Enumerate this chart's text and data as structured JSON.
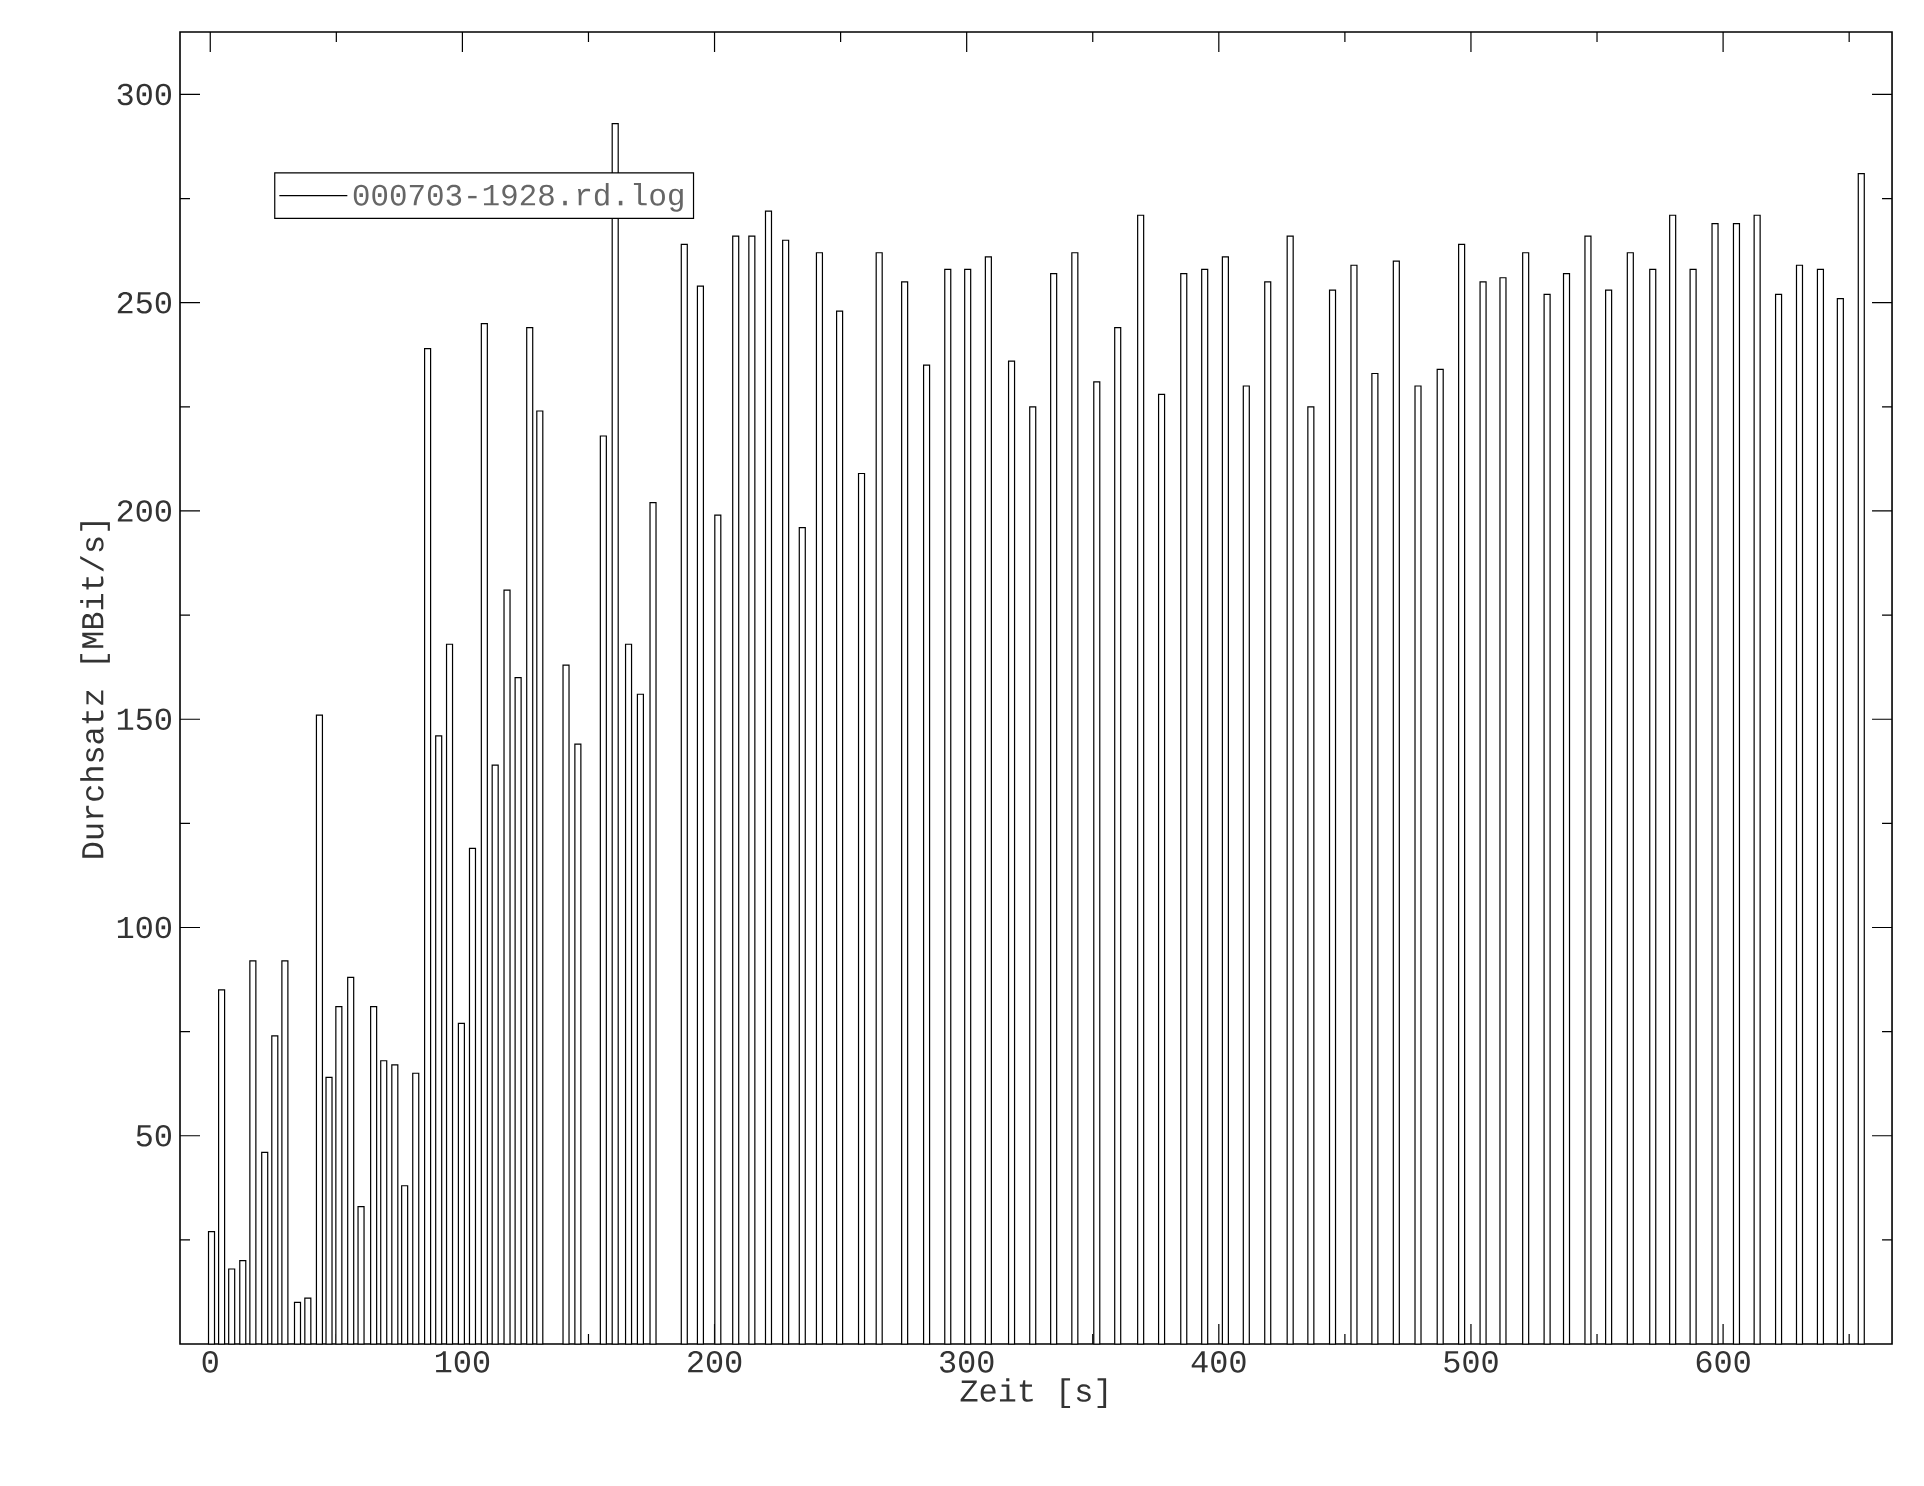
{
  "chart_data": {
    "type": "bar",
    "xlabel": "Zeit [s]",
    "ylabel": "Durchsatz [MBit/s]",
    "x": [
      0.5,
      4.5,
      8.5,
      12.9,
      16.9,
      21.6,
      25.6,
      29.6,
      34.6,
      38.7,
      43.3,
      47.1,
      51,
      55.7,
      59.8,
      64.8,
      68.8,
      73.2,
      77.1,
      81.5,
      86.2,
      90.6,
      94.9,
      99.6,
      104,
      108.7,
      113,
      117.7,
      122.1,
      126.7,
      130.7,
      135.7,
      141.1,
      145.8,
      151.1,
      155.9,
      160.6,
      165.9,
      170.6,
      175.6,
      180.6,
      188,
      194.4,
      201.3,
      208.4,
      214.8,
      221.4,
      228.2,
      234.8,
      241.6,
      249.6,
      258.3,
      265.3,
      275.4,
      284.1,
      292.5,
      300.4,
      308.6,
      317.8,
      326.2,
      334.5,
      342.9,
      351.6,
      359.9,
      369,
      377.3,
      386.1,
      394.4,
      402.6,
      410.9,
      419.4,
      428.3,
      436.5,
      445.1,
      453.6,
      461.9,
      470.4,
      479,
      487.8,
      496.3,
      504.8,
      512.7,
      521.7,
      530.2,
      537.9,
      546.4,
      554.6,
      563.2,
      572.1,
      580,
      588.1,
      596.8,
      605.3,
      613.5,
      622,
      630.3,
      638.6,
      646.5,
      654.8
    ],
    "series": [
      {
        "name": "000703-1928.rd.log",
        "color": "#000000",
        "values": [
          27,
          85,
          18,
          20,
          92,
          46,
          74,
          92,
          10,
          11,
          151,
          64,
          81,
          88,
          33,
          81,
          68,
          67,
          38,
          65,
          239,
          146,
          168,
          77,
          119,
          245,
          139,
          181,
          160,
          244,
          224,
          null,
          163,
          144,
          null,
          218,
          293,
          168,
          156,
          202,
          null,
          264,
          254,
          199,
          266,
          266,
          272,
          265,
          196,
          262,
          248,
          209,
          262,
          255,
          235,
          258,
          258,
          261,
          236,
          225,
          257,
          262,
          231,
          244,
          271,
          228,
          257,
          258,
          261,
          230,
          255,
          266,
          225,
          253,
          259,
          233,
          260,
          230,
          234,
          264,
          255,
          256,
          262,
          252,
          257,
          266,
          253,
          262,
          258,
          271,
          258,
          269,
          269,
          271,
          252,
          259,
          258,
          251,
          281
        ]
      }
    ],
    "xlim": [
      -12,
      667
    ],
    "ylim": [
      0,
      315
    ],
    "xticks": [
      0,
      {
        "value": 50,
        "label": null
      },
      100,
      {
        "value": 150,
        "label": null
      },
      200,
      {
        "value": 250,
        "label": null
      },
      300,
      {
        "value": 350,
        "label": null
      },
      400,
      {
        "value": 450,
        "label": null
      },
      500,
      {
        "value": 550,
        "label": null
      },
      600,
      {
        "value": 650,
        "label": null
      }
    ],
    "yticks": [
      {
        "value": 25,
        "label": null
      },
      50,
      {
        "value": 75,
        "label": null
      },
      100,
      {
        "value": 125,
        "label": null
      },
      150,
      {
        "value": 175,
        "label": null
      },
      200,
      {
        "value": 225,
        "label": null
      },
      250,
      {
        "value": 275,
        "label": null
      },
      300
    ],
    "legend": "top left",
    "grid": false
  }
}
